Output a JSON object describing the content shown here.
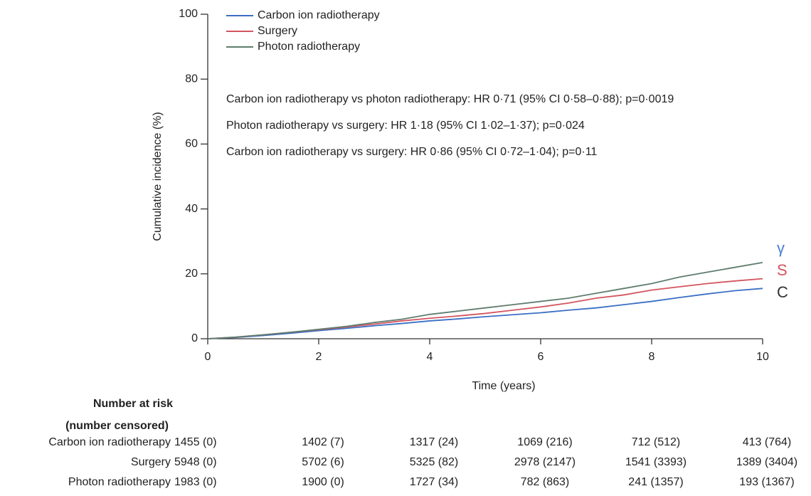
{
  "chart_data": {
    "type": "line",
    "x_label": "Time (years)",
    "y_label": "Cumulative incidence (%)",
    "x": [
      0,
      0.5,
      1,
      1.5,
      2,
      2.5,
      3,
      3.5,
      4,
      4.5,
      5,
      5.5,
      6,
      6.5,
      7,
      7.5,
      8,
      8.5,
      9,
      9.5,
      10
    ],
    "series": [
      {
        "name": "Carbon ion radiotherapy",
        "color": "#3a6fc4",
        "values": [
          0,
          0.4,
          1.0,
          1.7,
          2.5,
          3.2,
          4.0,
          4.7,
          5.5,
          6.1,
          6.8,
          7.4,
          8.0,
          8.8,
          9.5,
          10.5,
          11.5,
          12.7,
          13.8,
          14.8,
          15.5
        ]
      },
      {
        "name": "Surgery",
        "color": "#d4555f",
        "values": [
          0,
          0.5,
          1.2,
          2.0,
          2.8,
          3.6,
          4.5,
          5.5,
          6.3,
          7.0,
          7.8,
          8.8,
          9.8,
          11.0,
          12.5,
          13.5,
          15.0,
          16.0,
          17.0,
          17.8,
          18.5
        ]
      },
      {
        "name": "Photon radiotherapy",
        "color": "#5f7d6e",
        "values": [
          0,
          0.5,
          1.2,
          2.0,
          2.9,
          3.8,
          5.0,
          6.0,
          7.5,
          8.5,
          9.5,
          10.5,
          11.5,
          12.5,
          14.0,
          15.5,
          17.0,
          19.0,
          20.5,
          22.0,
          23.5
        ]
      }
    ],
    "xlim": [
      0,
      10
    ],
    "xticks": [
      0,
      2,
      4,
      6,
      8,
      10
    ],
    "ylim": [
      0,
      100
    ],
    "yticks": [
      0,
      20,
      40,
      60,
      80,
      100
    ],
    "legend": "top-left",
    "annotations": [
      "Carbon ion radiotherapy vs photon radiotherapy: HR 0·71 (95% CI 0·58–0·88); p=0·0019",
      "Photon radiotherapy vs surgery: HR 1·18 (95% CI 1·02–1·37); p=0·024",
      "Carbon ion radiotherapy vs surgery: HR 0·86 (95% CI 0·72–1·04); p=0·11"
    ],
    "end_labels": [
      {
        "text": "γ",
        "color": "#4a7fd0"
      },
      {
        "text": "S",
        "color": "#d4555f"
      },
      {
        "text": "C",
        "color": "#333333"
      }
    ],
    "risk_table": {
      "title": "Number at risk",
      "subtitle": "(number censored)",
      "rows": [
        {
          "name": "Carbon ion radiotherapy",
          "values": [
            "1455 (0)",
            "1402 (7)",
            "1317 (24)",
            "1069 (216)",
            "712 (512)",
            "413 (764)"
          ]
        },
        {
          "name": "Surgery",
          "values": [
            "5948 (0)",
            "5702 (6)",
            "5325 (82)",
            "2978 (2147)",
            "1541 (3393)",
            "1389 (3404)"
          ]
        },
        {
          "name": "Photon radiotherapy",
          "values": [
            "1983 (0)",
            "1900 (0)",
            "1727 (34)",
            "782 (863)",
            "241 (1357)",
            "193 (1367)"
          ]
        }
      ]
    }
  }
}
